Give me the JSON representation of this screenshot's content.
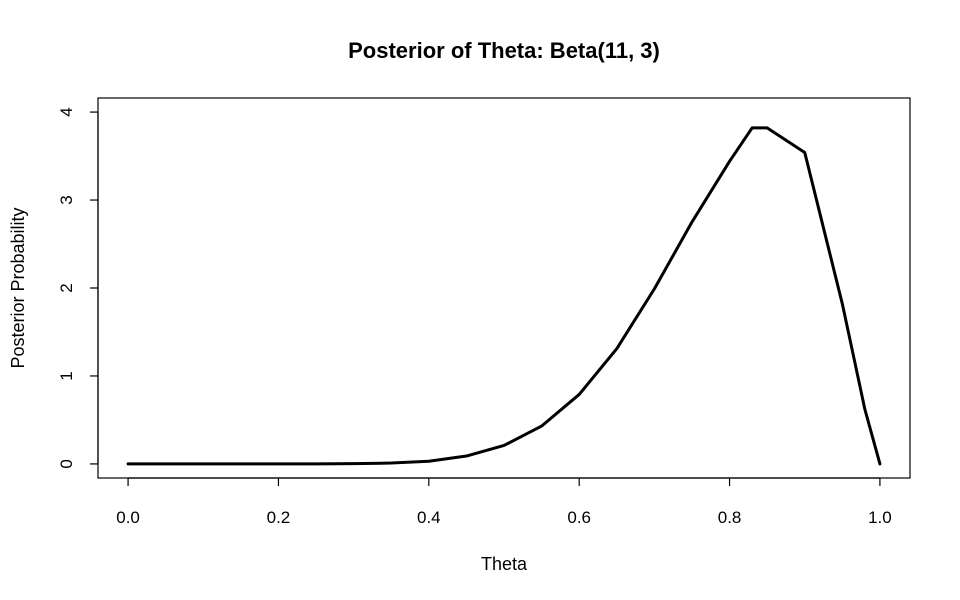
{
  "chart_data": {
    "type": "line",
    "title": "Posterior of Theta: Beta(11, 3)",
    "xlabel": "Theta",
    "ylabel": "Posterior Probability",
    "xlim": [
      0,
      1
    ],
    "ylim": [
      0,
      4
    ],
    "x_ticks": [
      "0.0",
      "0.2",
      "0.4",
      "0.6",
      "0.8",
      "1.0"
    ],
    "y_ticks": [
      "0",
      "1",
      "2",
      "3",
      "4"
    ],
    "grid": false,
    "legend": "none",
    "series": [
      {
        "color": "#000000",
        "x": [
          0.0,
          0.05,
          0.1,
          0.15,
          0.2,
          0.25,
          0.3,
          0.35,
          0.4,
          0.45,
          0.5,
          0.55,
          0.6,
          0.65,
          0.7,
          0.75,
          0.8,
          0.83,
          0.85,
          0.9,
          0.95,
          0.98,
          1.0
        ],
        "y": [
          0.0,
          0.0,
          0.0,
          0.0,
          0.0,
          0.0,
          0.003,
          0.01,
          0.03,
          0.09,
          0.21,
          0.43,
          0.79,
          1.31,
          1.99,
          2.75,
          3.44,
          3.82,
          3.82,
          3.54,
          1.82,
          0.62,
          0.0
        ]
      }
    ]
  }
}
